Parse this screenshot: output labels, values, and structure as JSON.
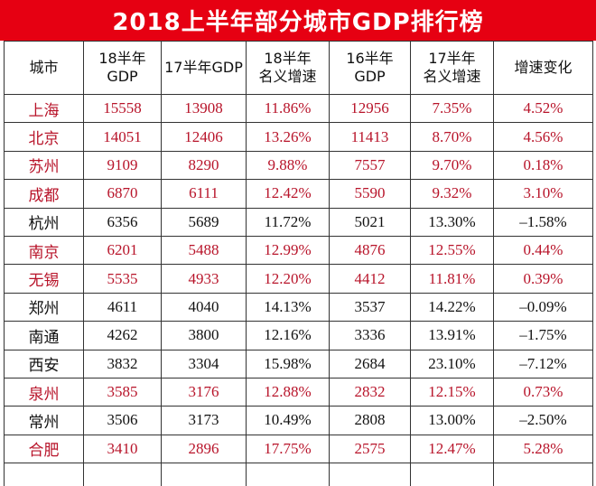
{
  "title": "2018上半年部分城市GDP排行榜",
  "columns": [
    [
      "城市"
    ],
    [
      "18半年",
      "GDP"
    ],
    [
      "17半年GDP"
    ],
    [
      "18半年",
      "名义增速"
    ],
    [
      "16半年",
      "GDP"
    ],
    [
      "17半年",
      "名义增速"
    ],
    [
      "增速变化"
    ]
  ],
  "rows": [
    {
      "city": "上海",
      "gdp18": "15558",
      "gdp17": "13908",
      "growth18": "11.86%",
      "gdp16": "12956",
      "growth17": "7.35%",
      "change": "4.52%",
      "highlight": true
    },
    {
      "city": "北京",
      "gdp18": "14051",
      "gdp17": "12406",
      "growth18": "13.26%",
      "gdp16": "11413",
      "growth17": "8.70%",
      "change": "4.56%",
      "highlight": true
    },
    {
      "city": "苏州",
      "gdp18": "9109",
      "gdp17": "8290",
      "growth18": "9.88%",
      "gdp16": "7557",
      "growth17": "9.70%",
      "change": "0.18%",
      "highlight": true
    },
    {
      "city": "成都",
      "gdp18": "6870",
      "gdp17": "6111",
      "growth18": "12.42%",
      "gdp16": "5590",
      "growth17": "9.32%",
      "change": "3.10%",
      "highlight": true
    },
    {
      "city": "杭州",
      "gdp18": "6356",
      "gdp17": "5689",
      "growth18": "11.72%",
      "gdp16": "5021",
      "growth17": "13.30%",
      "change": "–1.58%",
      "highlight": false
    },
    {
      "city": "南京",
      "gdp18": "6201",
      "gdp17": "5488",
      "growth18": "12.99%",
      "gdp16": "4876",
      "growth17": "12.55%",
      "change": "0.44%",
      "highlight": true
    },
    {
      "city": "无锡",
      "gdp18": "5535",
      "gdp17": "4933",
      "growth18": "12.20%",
      "gdp16": "4412",
      "growth17": "11.81%",
      "change": "0.39%",
      "highlight": true
    },
    {
      "city": "郑州",
      "gdp18": "4611",
      "gdp17": "4040",
      "growth18": "14.13%",
      "gdp16": "3537",
      "growth17": "14.22%",
      "change": "–0.09%",
      "highlight": false
    },
    {
      "city": "南通",
      "gdp18": "4262",
      "gdp17": "3800",
      "growth18": "12.16%",
      "gdp16": "3336",
      "growth17": "13.91%",
      "change": "–1.75%",
      "highlight": false
    },
    {
      "city": "西安",
      "gdp18": "3832",
      "gdp17": "3304",
      "growth18": "15.98%",
      "gdp16": "2684",
      "growth17": "23.10%",
      "change": "–7.12%",
      "highlight": false
    },
    {
      "city": "泉州",
      "gdp18": "3585",
      "gdp17": "3176",
      "growth18": "12.88%",
      "gdp16": "2832",
      "growth17": "12.15%",
      "change": "0.73%",
      "highlight": true
    },
    {
      "city": "常州",
      "gdp18": "3506",
      "gdp17": "3173",
      "growth18": "10.49%",
      "gdp16": "2808",
      "growth17": "13.00%",
      "change": "–2.50%",
      "highlight": false
    },
    {
      "city": "合肥",
      "gdp18": "3410",
      "gdp17": "2896",
      "growth18": "17.75%",
      "gdp16": "2575",
      "growth17": "12.47%",
      "change": "5.28%",
      "highlight": true
    }
  ],
  "colors": {
    "title_bg": "#e60012",
    "highlight_text": "#b8142a",
    "normal_text": "#111111",
    "border": "#333333"
  }
}
